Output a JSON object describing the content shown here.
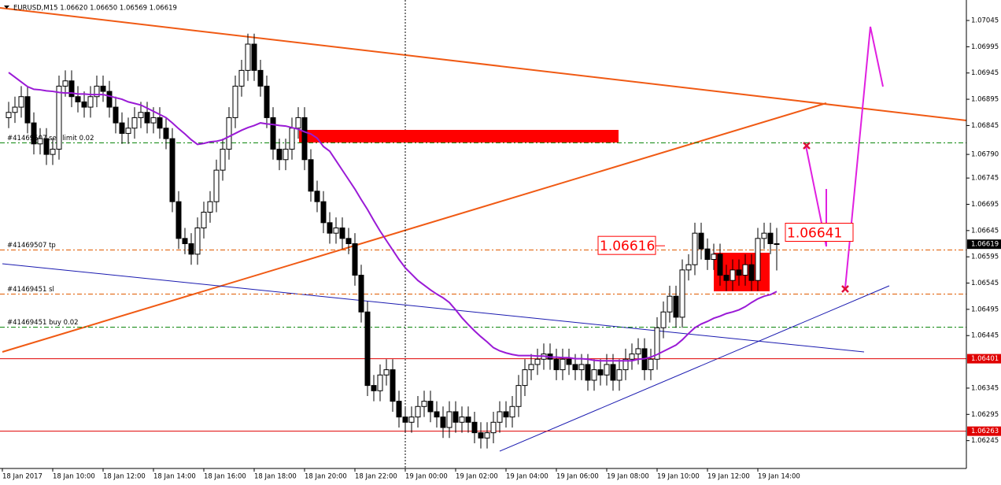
{
  "chart_data": {
    "type": "candlestick",
    "title": "EURUSD,M15  1.06620 1.06650 1.06569 1.06619",
    "x_labels": [
      "18 Jan 2017",
      "18 Jan 10:00",
      "18 Jan 12:00",
      "18 Jan 14:00",
      "18 Jan 16:00",
      "18 Jan 18:00",
      "18 Jan 20:00",
      "18 Jan 22:00",
      "19 Jan 00:00",
      "19 Jan 02:00",
      "19 Jan 04:00",
      "19 Jan 06:00",
      "19 Jan 08:00",
      "19 Jan 10:00",
      "19 Jan 12:00",
      "19 Jan 14:00"
    ],
    "open": [
      1.0686,
      1.0687,
      1.0688,
      1.069,
      1.0685,
      1.0681,
      1.0682,
      1.0679,
      1.068,
      1.0692,
      1.0693,
      1.069,
      1.0689,
      1.0688,
      1.069,
      1.0692,
      1.0691,
      1.0688,
      1.0685,
      1.0683,
      1.0684,
      1.0686,
      1.0687,
      1.0685,
      1.0686,
      1.0684,
      1.0682,
      1.067,
      1.0663,
      1.0662,
      1.066,
      1.0665,
      1.0668,
      1.067,
      1.0676,
      1.068,
      1.0686,
      1.0692,
      1.0695,
      1.07,
      1.0695,
      1.0692,
      1.0686,
      1.068,
      1.0678,
      1.068,
      1.0684,
      1.0686,
      1.0678,
      1.0672,
      1.067,
      1.0666,
      1.0664,
      1.0665,
      1.0663,
      1.0662,
      1.0656,
      1.0649,
      1.0635,
      1.0634,
      1.0637,
      1.0638,
      1.0632,
      1.0629,
      1.0628,
      1.0629,
      1.0631,
      1.0632,
      1.063,
      1.0629,
      1.0627,
      1.063,
      1.0628,
      1.0629,
      1.0628,
      1.0626,
      1.0625,
      1.0626,
      1.0628,
      1.063,
      1.0629,
      1.0631,
      1.0635,
      1.0638,
      1.0639,
      1.064,
      1.0641,
      1.064,
      1.0638,
      1.064,
      1.0639,
      1.0638,
      1.0639,
      1.0636,
      1.0638,
      1.0637,
      1.0639,
      1.0636,
      1.0638,
      1.064,
      1.0641,
      1.0642,
      1.0638,
      1.064,
      1.0646,
      1.0649,
      1.0652,
      1.0648,
      1.0657,
      1.0658,
      1.0664,
      1.0661,
      1.0659,
      1.066,
      1.0656,
      1.0655,
      1.0657,
      1.0656,
      1.0658,
      1.0655,
      1.0663,
      1.0664,
      1.0662
    ],
    "high": [
      1.0689,
      1.069,
      1.0692,
      1.0692,
      1.0687,
      1.0684,
      1.0684,
      1.0682,
      1.0694,
      1.0695,
      1.0695,
      1.0692,
      1.0691,
      1.0692,
      1.0694,
      1.0694,
      1.0693,
      1.069,
      1.0687,
      1.0686,
      1.0688,
      1.0689,
      1.0689,
      1.0688,
      1.0688,
      1.0686,
      1.0684,
      1.0672,
      1.0665,
      1.0664,
      1.0667,
      1.067,
      1.0672,
      1.0678,
      1.0682,
      1.0688,
      1.0694,
      1.0697,
      1.0702,
      1.0702,
      1.0697,
      1.0694,
      1.0688,
      1.0682,
      1.0682,
      1.0686,
      1.0688,
      1.0688,
      1.068,
      1.0674,
      1.0672,
      1.0668,
      1.0667,
      1.0667,
      1.0665,
      1.0664,
      1.0658,
      1.0651,
      1.0637,
      1.0639,
      1.064,
      1.064,
      1.0634,
      1.0631,
      1.0631,
      1.0633,
      1.0634,
      1.0634,
      1.0632,
      1.0631,
      1.0632,
      1.0632,
      1.0631,
      1.0631,
      1.063,
      1.0628,
      1.0628,
      1.063,
      1.0632,
      1.0632,
      1.0633,
      1.0637,
      1.064,
      1.0641,
      1.0642,
      1.0643,
      1.0643,
      1.0642,
      1.0642,
      1.0642,
      1.0641,
      1.0641,
      1.0641,
      1.064,
      1.064,
      1.0641,
      1.0641,
      1.064,
      1.0642,
      1.0643,
      1.0644,
      1.0644,
      1.0642,
      1.0648,
      1.0651,
      1.0654,
      1.0654,
      1.0659,
      1.066,
      1.0666,
      1.0666,
      1.0663,
      1.0662,
      1.0662,
      1.0658,
      1.0659,
      1.0659,
      1.066,
      1.066,
      1.0665,
      1.0666,
      1.0666,
      1.0665
    ],
    "low": [
      1.0684,
      1.0685,
      1.0686,
      1.0683,
      1.0679,
      1.0679,
      1.0677,
      1.0677,
      1.0678,
      1.069,
      1.0688,
      1.0687,
      1.0686,
      1.0686,
      1.0688,
      1.0689,
      1.0686,
      1.0683,
      1.0681,
      1.0681,
      1.0682,
      1.0684,
      1.0683,
      1.0683,
      1.0682,
      1.068,
      1.0668,
      1.0661,
      1.066,
      1.0658,
      1.0658,
      1.0663,
      1.0666,
      1.0668,
      1.0674,
      1.0678,
      1.0684,
      1.069,
      1.0693,
      1.0693,
      1.069,
      1.0684,
      1.0678,
      1.0676,
      1.0676,
      1.0678,
      1.0682,
      1.0676,
      1.067,
      1.0668,
      1.0664,
      1.0662,
      1.0662,
      1.0661,
      1.066,
      1.0654,
      1.0647,
      1.0633,
      1.0632,
      1.0632,
      1.0635,
      1.063,
      1.0627,
      1.0626,
      1.0626,
      1.0627,
      1.0629,
      1.0628,
      1.0627,
      1.0625,
      1.0625,
      1.0626,
      1.0626,
      1.0626,
      1.0624,
      1.0623,
      1.0623,
      1.0624,
      1.0626,
      1.0627,
      1.0627,
      1.0629,
      1.0633,
      1.0636,
      1.0637,
      1.0638,
      1.0638,
      1.0636,
      1.0636,
      1.0637,
      1.0636,
      1.0636,
      1.0634,
      1.0634,
      1.0635,
      1.0635,
      1.0634,
      1.0634,
      1.0636,
      1.0638,
      1.0639,
      1.0636,
      1.0636,
      1.0638,
      1.0644,
      1.0647,
      1.0646,
      1.0646,
      1.0655,
      1.0656,
      1.0659,
      1.0657,
      1.0657,
      1.0654,
      1.0653,
      1.0653,
      1.0654,
      1.0654,
      1.0653,
      1.0653,
      1.0661,
      1.066,
      1.06569
    ],
    "close": [
      1.0687,
      1.0688,
      1.069,
      1.0685,
      1.0681,
      1.0682,
      1.0679,
      1.068,
      1.0692,
      1.0693,
      1.069,
      1.0689,
      1.0688,
      1.069,
      1.0692,
      1.0691,
      1.0688,
      1.0685,
      1.0683,
      1.0684,
      1.0686,
      1.0687,
      1.0685,
      1.0686,
      1.0684,
      1.0682,
      1.067,
      1.0663,
      1.0662,
      1.066,
      1.0665,
      1.0668,
      1.067,
      1.0676,
      1.068,
      1.0686,
      1.0692,
      1.0695,
      1.07,
      1.0695,
      1.0692,
      1.0686,
      1.068,
      1.0678,
      1.068,
      1.0684,
      1.0686,
      1.0678,
      1.0672,
      1.067,
      1.0666,
      1.0664,
      1.0665,
      1.0663,
      1.0662,
      1.0656,
      1.0649,
      1.0635,
      1.0634,
      1.0637,
      1.0638,
      1.0632,
      1.0629,
      1.0628,
      1.0629,
      1.0631,
      1.0632,
      1.063,
      1.0629,
      1.0627,
      1.063,
      1.0628,
      1.0629,
      1.0628,
      1.0626,
      1.0625,
      1.0626,
      1.0628,
      1.063,
      1.0629,
      1.0631,
      1.0635,
      1.0638,
      1.0639,
      1.064,
      1.0641,
      1.064,
      1.0638,
      1.064,
      1.0639,
      1.0638,
      1.0639,
      1.0636,
      1.0638,
      1.0637,
      1.0639,
      1.0636,
      1.0638,
      1.064,
      1.0641,
      1.0642,
      1.0638,
      1.064,
      1.0646,
      1.0649,
      1.0652,
      1.0648,
      1.0657,
      1.0658,
      1.0664,
      1.0661,
      1.0659,
      1.066,
      1.0656,
      1.0655,
      1.0657,
      1.0656,
      1.0658,
      1.0655,
      1.0663,
      1.0664,
      1.0662,
      1.06619
    ],
    "ma": [
      1.06946,
      1.06937,
      1.06928,
      1.06919,
      1.06914,
      1.06913,
      1.06911,
      1.0691,
      1.06908,
      1.06907,
      1.06907,
      1.06905,
      1.06905,
      1.06904,
      1.06904,
      1.06904,
      1.06901,
      1.06898,
      1.06895,
      1.0689,
      1.06887,
      1.06884,
      1.06878,
      1.06872,
      1.06866,
      1.0686,
      1.0685,
      1.06839,
      1.06829,
      1.06818,
      1.06809,
      1.06811,
      1.06814,
      1.06815,
      1.06818,
      1.06824,
      1.0683,
      1.06836,
      1.06841,
      1.06845,
      1.0685,
      1.06848,
      1.06847,
      1.06845,
      1.06844,
      1.06841,
      1.06838,
      1.06833,
      1.06829,
      1.06821,
      1.06805,
      1.06796,
      1.06778,
      1.0676,
      1.06742,
      1.06724,
      1.06704,
      1.06685,
      1.06664,
      1.06644,
      1.06626,
      1.06608,
      1.0659,
      1.06574,
      1.06562,
      1.0655,
      1.06541,
      1.06532,
      1.06524,
      1.06517,
      1.06508,
      1.06494,
      1.06479,
      1.06466,
      1.06454,
      1.06443,
      1.06433,
      1.06422,
      1.06416,
      1.06412,
      1.06409,
      1.06407,
      1.06407,
      1.06407,
      1.06406,
      1.06406,
      1.06404,
      1.06404,
      1.06403,
      1.06403,
      1.06401,
      1.06401,
      1.064,
      1.06398,
      1.06397,
      1.06397,
      1.06397,
      1.06397,
      1.06397,
      1.06397,
      1.064,
      1.06401,
      1.06404,
      1.06409,
      1.06415,
      1.06421,
      1.06427,
      1.06437,
      1.06449,
      1.0646,
      1.06467,
      1.06472,
      1.06478,
      1.06482,
      1.06487,
      1.0649,
      1.06494,
      1.065,
      1.06508,
      1.06515,
      1.0652,
      1.06523,
      1.06529
    ],
    "up_color": "#ffffff",
    "down_color": "#000000",
    "ma_color": "#9a1ad6",
    "ylim": [
      1.06192,
      1.07084
    ],
    "yticks": [
      1.07045,
      1.06995,
      1.06945,
      1.06895,
      1.06845,
      {
        "value": 1.0679,
        "label": "1.06790"
      },
      1.06745,
      1.06695,
      1.06645,
      1.06595,
      1.06545,
      1.06495,
      1.06445,
      1.06345,
      1.06295,
      1.06245
    ],
    "levels": [
      {
        "label": "#41469507 sell limit 0.02",
        "value": 1.06812,
        "color": "#008000"
      },
      {
        "label": "#41469507 tp",
        "value": 1.06608,
        "color": "#e05a00"
      },
      {
        "label": "#41469451 sl",
        "value": 1.06524,
        "color": "#e05a00"
      },
      {
        "label": "#41469451 buy 0.02",
        "value": 1.06461,
        "color": "#008000"
      }
    ],
    "hlines": [
      1.06401,
      1.06263
    ],
    "hline_color": "#e00000",
    "callouts": [
      1.06616,
      1.06641
    ]
  }
}
